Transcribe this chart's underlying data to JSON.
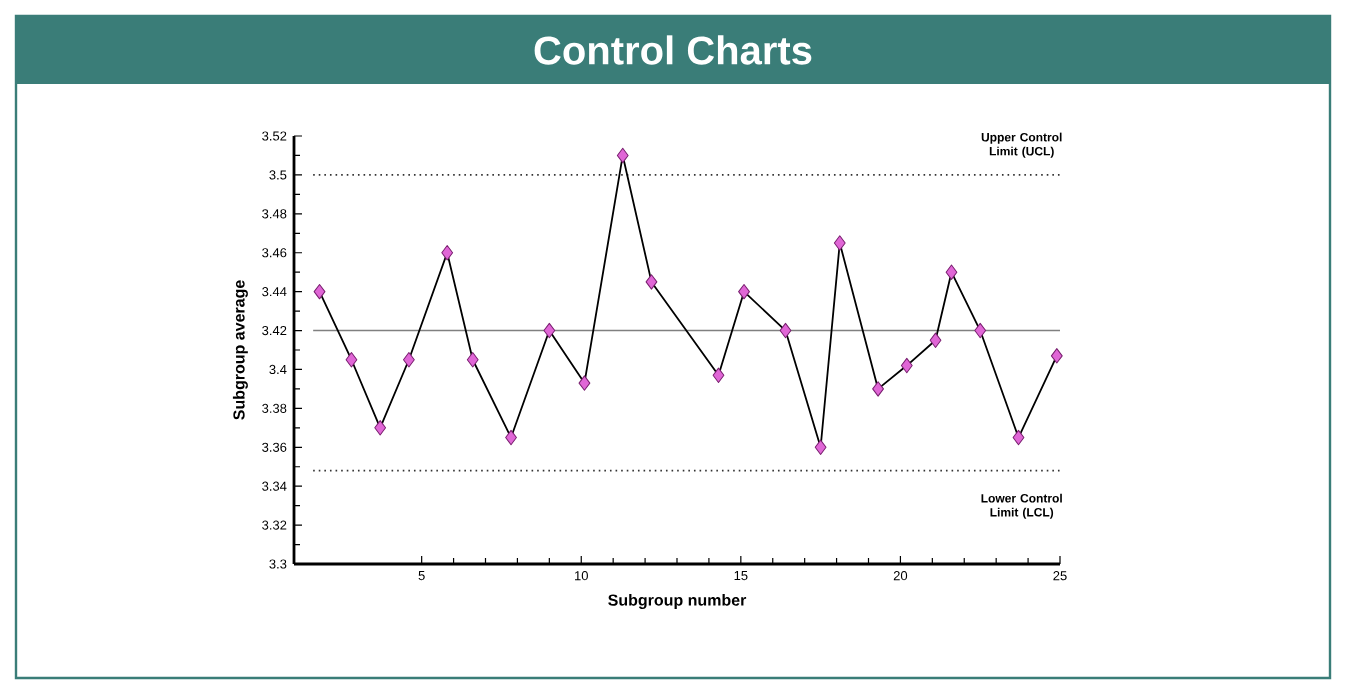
{
  "chart_data": {
    "type": "line",
    "title": "Control Charts",
    "xlabel": "Subgroup number",
    "ylabel": "Subgroup average",
    "x": [
      1.8,
      2.8,
      3.7,
      4.6,
      5.8,
      6.6,
      7.8,
      9.0,
      10.1,
      11.3,
      12.2,
      14.3,
      15.1,
      16.4,
      17.5,
      18.1,
      19.3,
      20.2,
      21.1,
      21.6,
      22.5,
      23.7,
      24.9
    ],
    "series": [
      {
        "color": "#000000",
        "values": [
          3.44,
          3.405,
          3.37,
          3.405,
          3.46,
          3.405,
          3.365,
          3.42,
          3.393,
          3.51,
          3.445,
          3.397,
          3.44,
          3.42,
          3.36,
          3.465,
          3.39,
          3.402,
          3.415,
          3.45,
          3.42,
          3.365,
          3.407
        ]
      }
    ],
    "xlim": [
      1,
      25
    ],
    "xticks": [
      5,
      10,
      15,
      20,
      25
    ],
    "ylim": [
      3.3,
      3.52
    ],
    "yticks": [
      3.3,
      3.32,
      3.34,
      3.36,
      3.38,
      3.4,
      3.42,
      3.44,
      3.46,
      3.48,
      3.5,
      3.52
    ],
    "marker": "diamond",
    "line_style": "solid",
    "grid": false,
    "ref_lines": [
      {
        "axis": "y",
        "value": 3.5,
        "label": "Upper Control Limit (UCL)",
        "color": "#333333",
        "line_style": "dotted"
      },
      {
        "axis": "y",
        "value": 3.42,
        "color": "#808080",
        "line_style": "solid"
      },
      {
        "axis": "y",
        "value": 3.348,
        "label": "Lower Control Limit (LCL)",
        "color": "#333333",
        "line_style": "dotted"
      }
    ]
  }
}
